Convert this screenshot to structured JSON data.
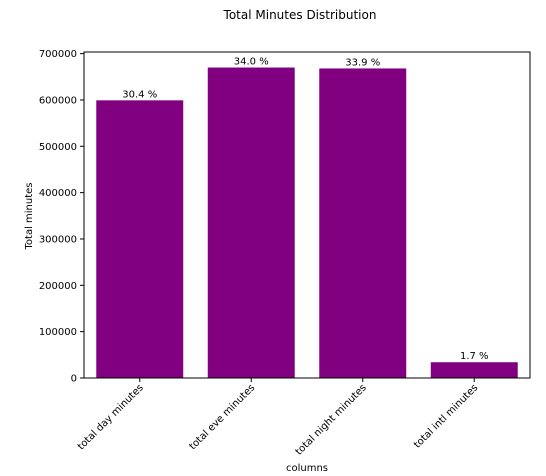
{
  "chart_data": {
    "type": "bar",
    "title": "Total Minutes Distribution",
    "xlabel": "columns",
    "ylabel": "Total minutes",
    "categories": [
      "total day minutes",
      "total eve minutes",
      "total night minutes",
      "total intl minutes"
    ],
    "values": [
      599190,
      670000,
      668000,
      34000
    ],
    "data_labels": [
      "30.4 %",
      "34.0 %",
      "33.9 %",
      "1.7 %"
    ],
    "ylim": [
      0,
      703500
    ],
    "yticks": [
      0,
      100000,
      200000,
      300000,
      400000,
      500000,
      600000,
      700000
    ],
    "ytick_labels": [
      "0",
      "100000",
      "200000",
      "300000",
      "400000",
      "500000",
      "600000",
      "700000"
    ],
    "bar_color": "#800080",
    "grid": false,
    "legend": "none"
  }
}
